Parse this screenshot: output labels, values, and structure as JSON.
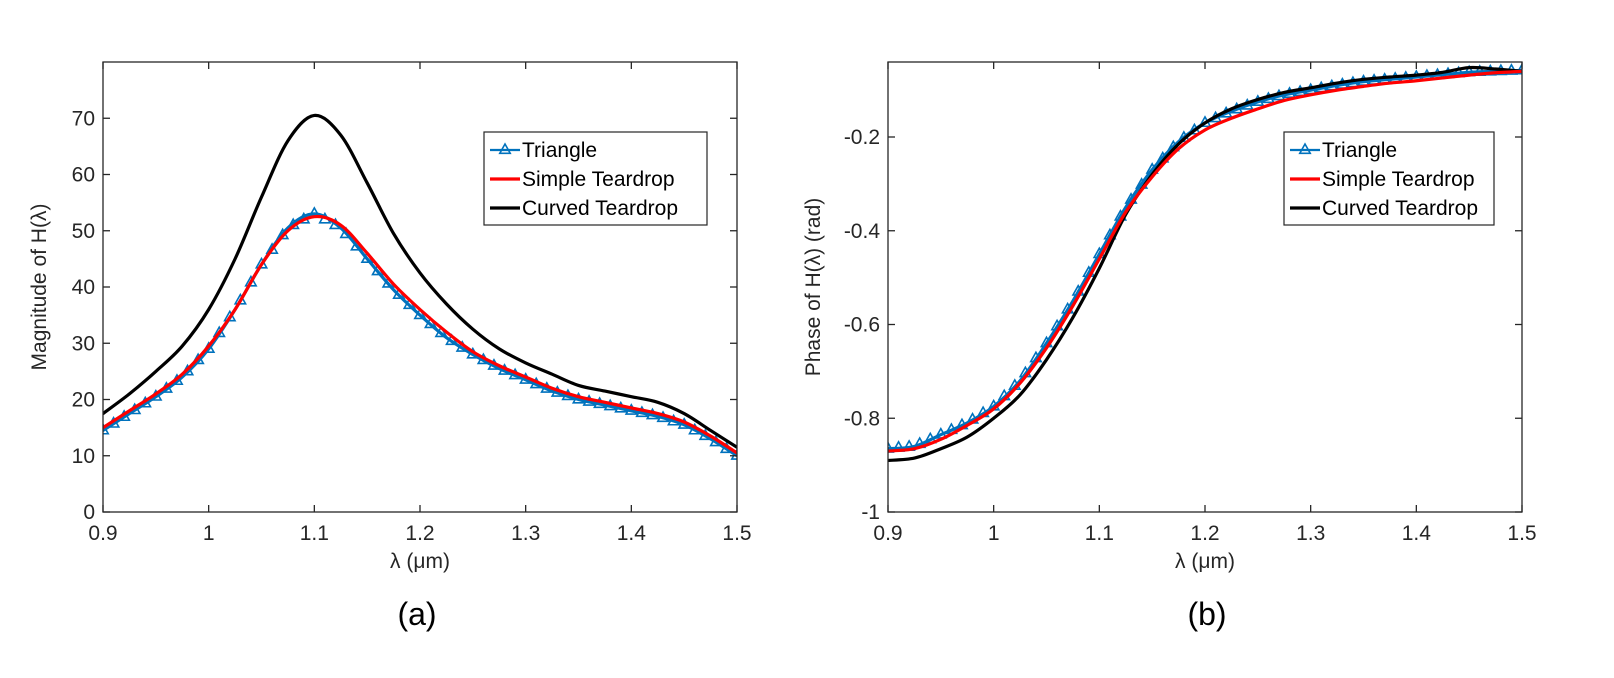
{
  "chart_data": [
    {
      "type": "line",
      "panel_label": "(a)",
      "title": "",
      "xlabel": "λ (μm)",
      "ylabel": "Magnitude of H(λ)",
      "xlim": [
        0.9,
        1.5
      ],
      "ylim": [
        0,
        80
      ],
      "xticks": [
        0.9,
        1.0,
        1.1,
        1.2,
        1.3,
        1.4,
        1.5
      ],
      "xtick_labels": [
        "0.9",
        "1",
        "1.1",
        "1.2",
        "1.3",
        "1.4",
        "1.5"
      ],
      "yticks": [
        0,
        10,
        20,
        30,
        40,
        50,
        60,
        70
      ],
      "ytick_labels": [
        "0",
        "10",
        "20",
        "30",
        "40",
        "50",
        "60",
        "70"
      ],
      "legend_position": "top-right",
      "series": [
        {
          "name": "Triangle",
          "color": "#0072BD",
          "marker": "triangle",
          "x": [
            0.9,
            0.925,
            0.95,
            0.975,
            1.0,
            1.025,
            1.05,
            1.075,
            1.1,
            1.125,
            1.15,
            1.175,
            1.2,
            1.225,
            1.25,
            1.275,
            1.3,
            1.325,
            1.35,
            1.375,
            1.4,
            1.425,
            1.45,
            1.475,
            1.5
          ],
          "y": [
            14.5,
            17.5,
            20.5,
            24.0,
            29.0,
            36.0,
            44.0,
            50.5,
            53.0,
            50.5,
            45.0,
            39.5,
            35.0,
            31.0,
            28.0,
            25.5,
            23.5,
            21.5,
            20.0,
            19.0,
            18.0,
            17.0,
            15.5,
            13.0,
            10.0
          ]
        },
        {
          "name": "Simple Teardrop",
          "color": "#FF0000",
          "marker": "none",
          "x": [
            0.9,
            0.925,
            0.95,
            0.975,
            1.0,
            1.025,
            1.05,
            1.075,
            1.1,
            1.125,
            1.15,
            1.175,
            1.2,
            1.225,
            1.25,
            1.275,
            1.3,
            1.325,
            1.35,
            1.375,
            1.4,
            1.425,
            1.45,
            1.475,
            1.5
          ],
          "y": [
            15.0,
            18.0,
            21.0,
            24.5,
            29.5,
            36.0,
            44.0,
            50.0,
            52.5,
            51.0,
            46.0,
            40.5,
            36.0,
            32.0,
            28.5,
            26.0,
            24.0,
            22.0,
            20.5,
            19.5,
            18.5,
            17.5,
            16.0,
            13.5,
            10.5
          ]
        },
        {
          "name": "Curved Teardrop",
          "color": "#000000",
          "marker": "none",
          "x": [
            0.9,
            0.925,
            0.95,
            0.975,
            1.0,
            1.025,
            1.05,
            1.075,
            1.1,
            1.125,
            1.15,
            1.175,
            1.2,
            1.225,
            1.25,
            1.275,
            1.3,
            1.325,
            1.35,
            1.375,
            1.4,
            1.425,
            1.45,
            1.475,
            1.5
          ],
          "y": [
            17.5,
            21.0,
            25.0,
            29.5,
            36.0,
            45.0,
            56.0,
            66.0,
            70.5,
            67.0,
            58.5,
            49.5,
            42.5,
            37.0,
            32.5,
            29.0,
            26.5,
            24.5,
            22.5,
            21.5,
            20.5,
            19.5,
            17.5,
            14.5,
            11.5
          ]
        }
      ]
    },
    {
      "type": "line",
      "panel_label": "(b)",
      "title": "",
      "xlabel": "λ (μm)",
      "ylabel": "Phase of H(λ) (rad)",
      "xlim": [
        0.9,
        1.5
      ],
      "ylim": [
        -1,
        -0.04
      ],
      "xticks": [
        0.9,
        1.0,
        1.1,
        1.2,
        1.3,
        1.4,
        1.5
      ],
      "xtick_labels": [
        "0.9",
        "1",
        "1.1",
        "1.2",
        "1.3",
        "1.4",
        "1.5"
      ],
      "yticks": [
        -1.0,
        -0.8,
        -0.6,
        -0.4,
        -0.2
      ],
      "ytick_labels": [
        "-1",
        "-0.8",
        "-0.6",
        "-0.4",
        "-0.2"
      ],
      "legend_position": "top-right",
      "series": [
        {
          "name": "Triangle",
          "color": "#0072BD",
          "marker": "triangle",
          "x": [
            0.9,
            0.925,
            0.95,
            0.975,
            1.0,
            1.025,
            1.05,
            1.075,
            1.1,
            1.125,
            1.15,
            1.175,
            1.2,
            1.225,
            1.25,
            1.275,
            1.3,
            1.325,
            1.35,
            1.375,
            1.4,
            1.425,
            1.45,
            1.475,
            1.5
          ],
          "y": [
            -0.865,
            -0.86,
            -0.835,
            -0.81,
            -0.775,
            -0.72,
            -0.64,
            -0.55,
            -0.45,
            -0.35,
            -0.27,
            -0.21,
            -0.17,
            -0.145,
            -0.125,
            -0.11,
            -0.1,
            -0.09,
            -0.082,
            -0.077,
            -0.072,
            -0.067,
            -0.062,
            -0.06,
            -0.058
          ]
        },
        {
          "name": "Simple Teardrop",
          "color": "#FF0000",
          "marker": "none",
          "x": [
            0.9,
            0.925,
            0.95,
            0.975,
            1.0,
            1.025,
            1.05,
            1.075,
            1.1,
            1.125,
            1.15,
            1.175,
            1.2,
            1.225,
            1.25,
            1.275,
            1.3,
            1.325,
            1.35,
            1.375,
            1.4,
            1.425,
            1.45,
            1.475,
            1.5
          ],
          "y": [
            -0.87,
            -0.865,
            -0.845,
            -0.815,
            -0.78,
            -0.725,
            -0.65,
            -0.56,
            -0.46,
            -0.36,
            -0.285,
            -0.225,
            -0.185,
            -0.16,
            -0.14,
            -0.122,
            -0.11,
            -0.1,
            -0.092,
            -0.085,
            -0.08,
            -0.074,
            -0.068,
            -0.063,
            -0.06
          ]
        },
        {
          "name": "Curved Teardrop",
          "color": "#000000",
          "marker": "none",
          "x": [
            0.9,
            0.925,
            0.95,
            0.975,
            1.0,
            1.025,
            1.05,
            1.075,
            1.1,
            1.125,
            1.15,
            1.175,
            1.2,
            1.225,
            1.25,
            1.275,
            1.3,
            1.325,
            1.35,
            1.375,
            1.4,
            1.425,
            1.45,
            1.475,
            1.5
          ],
          "y": [
            -0.89,
            -0.885,
            -0.865,
            -0.84,
            -0.8,
            -0.75,
            -0.675,
            -0.585,
            -0.48,
            -0.365,
            -0.28,
            -0.215,
            -0.17,
            -0.14,
            -0.12,
            -0.105,
            -0.095,
            -0.085,
            -0.077,
            -0.072,
            -0.068,
            -0.062,
            -0.052,
            -0.055,
            -0.06
          ]
        }
      ]
    }
  ]
}
